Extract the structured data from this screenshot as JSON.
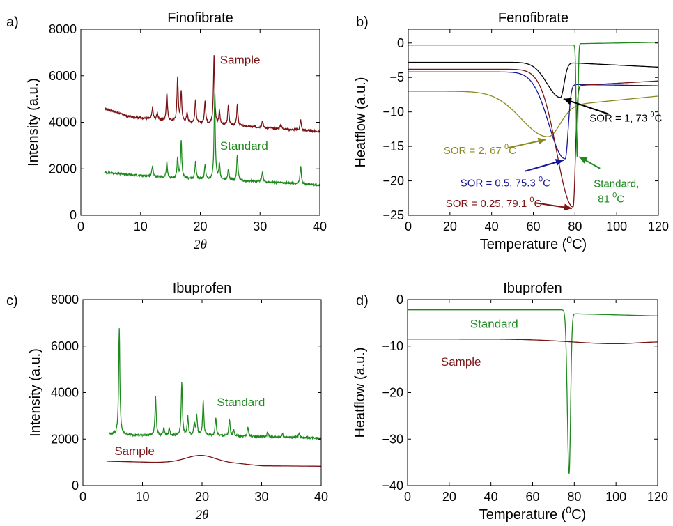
{
  "palette": {
    "sample": "#7b1315",
    "standard": "#1e8a1e",
    "black": "#000000",
    "navy": "#16169a",
    "olive": "#8a8a1e"
  },
  "chart_data": [
    {
      "id": "a",
      "panel_label": "a)",
      "type": "line",
      "title": "Finofibrate",
      "xlabel": "2θ",
      "ylabel": "Intensity (a.u.)",
      "xlim": [
        0,
        40
      ],
      "ylim": [
        0,
        8000
      ],
      "xticks": [
        0,
        10,
        20,
        30,
        40
      ],
      "yticks": [
        0,
        2000,
        4000,
        6000,
        8000
      ],
      "annotations": [
        {
          "text": "Sample",
          "x": 23.3,
          "y": 6700,
          "color": "sample"
        },
        {
          "text": "Standard",
          "x": 23.3,
          "y": 3000,
          "color": "standard"
        }
      ],
      "series": [
        {
          "name": "Sample",
          "color": "sample",
          "baseline": [
            [
              4,
              4600
            ],
            [
              8,
              4250
            ],
            [
              15,
              4050
            ],
            [
              20,
              3950
            ],
            [
              30,
              3780
            ],
            [
              40,
              3600
            ]
          ],
          "peaks": [
            [
              12,
              500
            ],
            [
              12.8,
              300
            ],
            [
              14.4,
              1200
            ],
            [
              16.2,
              1900
            ],
            [
              16.8,
              1300
            ],
            [
              17.8,
              400
            ],
            [
              19.2,
              1000
            ],
            [
              20.8,
              1000
            ],
            [
              22.3,
              2950
            ],
            [
              23.2,
              550
            ],
            [
              24.7,
              900
            ],
            [
              26.2,
              900
            ],
            [
              30.4,
              300
            ],
            [
              33.5,
              200
            ],
            [
              36.8,
              450
            ]
          ]
        },
        {
          "name": "Standard",
          "color": "standard",
          "baseline": [
            [
              4,
              1850
            ],
            [
              8,
              1750
            ],
            [
              15,
              1600
            ],
            [
              20,
              1550
            ],
            [
              30,
              1450
            ],
            [
              40,
              1300
            ]
          ],
          "peaks": [
            [
              12,
              500
            ],
            [
              14.4,
              650
            ],
            [
              16.2,
              850
            ],
            [
              16.8,
              1600
            ],
            [
              19.2,
              750
            ],
            [
              20.8,
              650
            ],
            [
              22.4,
              3650
            ],
            [
              23.2,
              700
            ],
            [
              24.7,
              500
            ],
            [
              26.2,
              1100
            ],
            [
              30.4,
              450
            ],
            [
              36.8,
              800
            ]
          ]
        }
      ]
    },
    {
      "id": "b",
      "panel_label": "b)",
      "type": "line",
      "title": "Fenofibrate",
      "xlabel": "Temperature (0C)",
      "ylabel": "Heatflow (a.u.)",
      "xlim": [
        0,
        120
      ],
      "ylim": [
        -25,
        2
      ],
      "xticks": [
        0,
        20,
        40,
        60,
        80,
        100,
        120
      ],
      "yticks": [
        0,
        -5,
        -10,
        -15,
        -20,
        -25
      ],
      "series": [
        {
          "name": "SOR = 1, 73 0C",
          "color": "black",
          "start": -2.8,
          "peak_x": 73,
          "peak_y": -7.9,
          "after": -2.8,
          "end": -3.5,
          "w_left": 9,
          "w_right": 2.5
        },
        {
          "name": "SOR = 2, 67 0C",
          "color": "olive",
          "start": -7,
          "peak_x": 67,
          "peak_y": -13.6,
          "after": -9.3,
          "end": -7.7,
          "w_left": 18,
          "w_right": 8
        },
        {
          "name": "SOR = 0.5, 75.3 0C",
          "color": "navy",
          "start": -4.2,
          "peak_x": 75.3,
          "peak_y": -16.8,
          "after": -6,
          "end": -6.2,
          "w_left": 11,
          "w_right": 2
        },
        {
          "name": "SOR = 0.25, 79.1 0C",
          "color": "sample",
          "start": -3.8,
          "peak_x": 79.1,
          "peak_y": -23.8,
          "after": -6.2,
          "end": -5.5,
          "w_left": 11,
          "w_right": 1.5
        },
        {
          "name": "Standard, 81 0C",
          "color": "standard",
          "start": -0.3,
          "peak_x": 81,
          "peak_y": -16.5,
          "after": -0.1,
          "end": 0.1,
          "w_left": 0.6,
          "w_right": 0.6
        }
      ],
      "annotations": [
        {
          "text": "SOR = 1, 73 ",
          "sup": "0",
          "tail": "C",
          "color": "black",
          "lx": 87,
          "ly": -10.8,
          "ax1": 96,
          "ay1": -10.3,
          "ax2": 74.5,
          "ay2": -8.1
        },
        {
          "text": "SOR = 2, 67 ",
          "sup": "0",
          "tail": "C",
          "color": "olive",
          "lx": 17,
          "ly": -15.5,
          "ax1": 48,
          "ay1": -15.2,
          "ax2": 66,
          "ay2": -14
        },
        {
          "text": "SOR = 0.5, 75.3 ",
          "sup": "0",
          "tail": "C",
          "color": "navy",
          "lx": 25,
          "ly": -20.2,
          "ax1": 56,
          "ay1": -18.6,
          "ax2": 74.5,
          "ay2": -17
        },
        {
          "text": "SOR = 0.25, 79.1 ",
          "sup": "0",
          "tail": "C",
          "color": "sample",
          "lx": 18,
          "ly": -23.2,
          "ax1": 61,
          "ay1": -23.2,
          "ax2": 78.5,
          "ay2": -24
        },
        {
          "text": "Standard,",
          "color": "standard",
          "lx": 89,
          "ly": -20.3,
          "ax1": 92,
          "ay1": -18.2,
          "ax2": 82,
          "ay2": -16.5
        },
        {
          "text": "81 ",
          "sup": "0",
          "tail": "C",
          "color": "standard",
          "lx": 91,
          "ly": -22.5
        }
      ]
    },
    {
      "id": "c",
      "panel_label": "c)",
      "type": "line",
      "title": "Ibuprofen",
      "xlabel": "2θ",
      "ylabel": "Intensity (a.u.)",
      "xlim": [
        0,
        40
      ],
      "ylim": [
        0,
        8000
      ],
      "xticks": [
        0,
        10,
        20,
        30,
        40
      ],
      "yticks": [
        0,
        2000,
        4000,
        6000,
        8000
      ],
      "annotations": [
        {
          "text": "Standard",
          "x": 22.5,
          "y": 3600,
          "color": "standard"
        },
        {
          "text": "Sample",
          "x": 5.3,
          "y": 1500,
          "color": "sample"
        }
      ],
      "series": [
        {
          "name": "Standard",
          "color": "standard",
          "baseline": [
            [
              4.5,
              2200
            ],
            [
              12,
              2150
            ],
            [
              20,
              2150
            ],
            [
              40,
              2050
            ]
          ],
          "peaks": [
            [
              6.1,
              4600
            ],
            [
              12.2,
              1700
            ],
            [
              13.6,
              300
            ],
            [
              14.5,
              300
            ],
            [
              16.6,
              2300
            ],
            [
              17.6,
              800
            ],
            [
              18.7,
              500
            ],
            [
              19.1,
              900
            ],
            [
              20.2,
              1500
            ],
            [
              22.3,
              800
            ],
            [
              24.6,
              700
            ],
            [
              25.3,
              300
            ],
            [
              27.7,
              400
            ],
            [
              31,
              200
            ],
            [
              33.5,
              150
            ],
            [
              36.3,
              200
            ]
          ]
        },
        {
          "name": "Sample",
          "color": "sample",
          "baseline": [
            [
              4,
              1050
            ],
            [
              12,
              1000
            ],
            [
              20,
              1000
            ],
            [
              26,
              950
            ],
            [
              30,
              850
            ],
            [
              40,
              830
            ]
          ],
          "bumps": [
            [
              19.8,
              300,
              3.5
            ]
          ]
        }
      ]
    },
    {
      "id": "d",
      "panel_label": "d)",
      "type": "line",
      "title": "Ibuprofen",
      "xlabel": "Temperature (0C)",
      "ylabel": "Heatflow (a.u.)",
      "xlim": [
        0,
        120
      ],
      "ylim": [
        -40,
        0
      ],
      "xticks": [
        0,
        20,
        40,
        60,
        80,
        100,
        120
      ],
      "yticks": [
        0,
        -10,
        -20,
        -30,
        -40
      ],
      "annotations": [
        {
          "text": "Standard",
          "x": 30,
          "y": -5.2,
          "color": "standard"
        },
        {
          "text": "Sample",
          "x": 16,
          "y": -13.3,
          "color": "sample"
        }
      ],
      "series": [
        {
          "name": "Standard",
          "color": "standard",
          "start": -2.2,
          "peak_x": 77.5,
          "peak_y": -37.5,
          "after": -3,
          "end": -3.5,
          "w_left": 1.2,
          "w_right": 1.0
        },
        {
          "name": "Sample",
          "color": "sample",
          "start": -8.5,
          "peak_x": 100,
          "peak_y": -9.5,
          "after": -9.2,
          "end": -9.1,
          "w_left": 30,
          "w_right": 12
        }
      ]
    }
  ]
}
